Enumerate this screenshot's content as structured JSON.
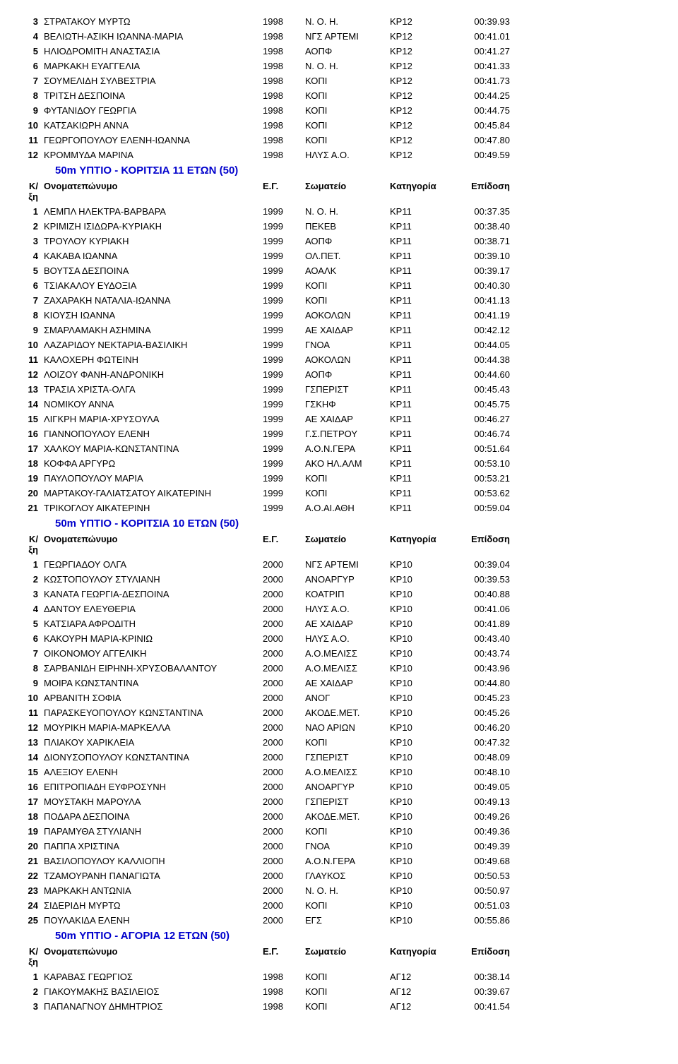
{
  "top_rows": [
    {
      "rank": "3",
      "name": "ΣΤΡΑΤΑΚΟΥ ΜΥΡΤΩ",
      "year": "1998",
      "club": "Ν. Ο. Η.",
      "cat": "ΚΡ12",
      "time": "00:39.93"
    },
    {
      "rank": "4",
      "name": "ΒΕΛΙΩΤΗ-ΑΣΙΚΗ ΙΩΑΝΝΑ-ΜΑΡΙΑ",
      "year": "1998",
      "club": "ΝΓΣ ΑΡΤΕΜΙ",
      "cat": "ΚΡ12",
      "time": "00:41.01"
    },
    {
      "rank": "5",
      "name": "ΗΛΙΟΔΡΟΜΙΤΗ ΑΝΑΣΤΑΣΙΑ",
      "year": "1998",
      "club": "ΑΟΠΦ",
      "cat": "ΚΡ12",
      "time": "00:41.27"
    },
    {
      "rank": "6",
      "name": "ΜΑΡΚΑΚΗ ΕΥΑΓΓΕΛΙΑ",
      "year": "1998",
      "club": "Ν. Ο. Η.",
      "cat": "ΚΡ12",
      "time": "00:41.33"
    },
    {
      "rank": "7",
      "name": "ΣΟΥΜΕΛΙΔΗ ΣΥΛΒΕΣΤΡΙΑ",
      "year": "1998",
      "club": "ΚΟΠΙ",
      "cat": "ΚΡ12",
      "time": "00:41.73"
    },
    {
      "rank": "8",
      "name": "ΤΡΙΤΣΗ ΔΕΣΠΟΙΝΑ",
      "year": "1998",
      "club": "ΚΟΠΙ",
      "cat": "ΚΡ12",
      "time": "00:44.25"
    },
    {
      "rank": "9",
      "name": "ΦΥΤΑΝΙΔΟΥ ΓΕΩΡΓΙΑ",
      "year": "1998",
      "club": "ΚΟΠΙ",
      "cat": "ΚΡ12",
      "time": "00:44.75"
    },
    {
      "rank": "10",
      "name": "ΚΑΤΣΑΚΙΩΡΗ ΑΝΝΑ",
      "year": "1998",
      "club": "ΚΟΠΙ",
      "cat": "ΚΡ12",
      "time": "00:45.84"
    },
    {
      "rank": "11",
      "name": "ΓΕΩΡΓΟΠΟΥΛΟΥ ΕΛΕΝΗ-ΙΩΑΝΝΑ",
      "year": "1998",
      "club": "ΚΟΠΙ",
      "cat": "ΚΡ12",
      "time": "00:47.80"
    },
    {
      "rank": "12",
      "name": "ΚΡΟΜΜΥΔΑ ΜΑΡΙΝΑ",
      "year": "1998",
      "club": "ΗΛΥΣ Α.Ο.",
      "cat": "ΚΡ12",
      "time": "00:49.59"
    }
  ],
  "section1_title": "50m ΥΠΤΙΟ - ΚΟΡΙΤΣΙΑ 11 ΕΤΩΝ  (50)",
  "header": {
    "rank": "Κ/ξη",
    "name": "Ονοματεπώνυμο",
    "year": "Ε.Γ.",
    "club": "Σωματείο",
    "cat": "Κατηγορία",
    "time": "Επίδοση"
  },
  "section1_rows": [
    {
      "rank": "1",
      "name": "ΛΕΜΠΛ ΗΛΕΚΤΡΑ-ΒΑΡΒΑΡΑ",
      "year": "1999",
      "club": "Ν. Ο. Η.",
      "cat": "ΚΡ11",
      "time": "00:37.35"
    },
    {
      "rank": "2",
      "name": "ΚΡΙΜΙΖΗ ΙΣΙΔΩΡΑ-ΚΥΡΙΑΚΗ",
      "year": "1999",
      "club": "ΠΕΚΕΒ",
      "cat": "ΚΡ11",
      "time": "00:38.40"
    },
    {
      "rank": "3",
      "name": "ΤΡΟΥΛΟΥ ΚΥΡΙΑΚΗ",
      "year": "1999",
      "club": "ΑΟΠΦ",
      "cat": "ΚΡ11",
      "time": "00:38.71"
    },
    {
      "rank": "4",
      "name": "ΚΑΚΑΒΑ ΙΩΑΝΝΑ",
      "year": "1999",
      "club": "ΟΛ.ΠΕΤ.",
      "cat": "ΚΡ11",
      "time": "00:39.10"
    },
    {
      "rank": "5",
      "name": "ΒΟΥΤΣΑ ΔΕΣΠΟΙΝΑ",
      "year": "1999",
      "club": "ΑΟΑΛΚ",
      "cat": "ΚΡ11",
      "time": "00:39.17"
    },
    {
      "rank": "6",
      "name": "ΤΣΙΑΚΑΛΟΥ ΕΥΔΟΞΙΑ",
      "year": "1999",
      "club": "ΚΟΠΙ",
      "cat": "ΚΡ11",
      "time": "00:40.30"
    },
    {
      "rank": "7",
      "name": "ΖΑΧΑΡΑΚΗ ΝΑΤΑΛΙΑ-ΙΩΑΝΝΑ",
      "year": "1999",
      "club": "ΚΟΠΙ",
      "cat": "ΚΡ11",
      "time": "00:41.13"
    },
    {
      "rank": "8",
      "name": "ΚΙΟΥΣΗ ΙΩΑΝΝΑ",
      "year": "1999",
      "club": "ΑΟΚΟΛΩΝ",
      "cat": "ΚΡ11",
      "time": "00:41.19"
    },
    {
      "rank": "9",
      "name": "ΣΜΑΡΛΑΜΑΚΗ ΑΣΗΜΙΝΑ",
      "year": "1999",
      "club": "ΑΕ ΧΑΙΔΑΡ",
      "cat": "ΚΡ11",
      "time": "00:42.12"
    },
    {
      "rank": "10",
      "name": "ΛΑΖΑΡΙΔΟΥ ΝΕΚΤΑΡΙΑ-ΒΑΣΙΛΙΚΗ",
      "year": "1999",
      "club": "ΓΝΟΑ",
      "cat": "ΚΡ11",
      "time": "00:44.05"
    },
    {
      "rank": "11",
      "name": "ΚΑΛΟΧΕΡΗ ΦΩΤΕΙΝΗ",
      "year": "1999",
      "club": "ΑΟΚΟΛΩΝ",
      "cat": "ΚΡ11",
      "time": "00:44.38"
    },
    {
      "rank": "12",
      "name": "ΛΟΙΖΟΥ ΦΑΝΗ-ΑΝΔΡΟΝΙΚΗ",
      "year": "1999",
      "club": "ΑΟΠΦ",
      "cat": "ΚΡ11",
      "time": "00:44.60"
    },
    {
      "rank": "13",
      "name": "ΤΡΑΣΙΑ ΧΡΙΣΤΑ-ΟΛΓΑ",
      "year": "1999",
      "club": "ΓΣΠΕΡΙΣΤ",
      "cat": "ΚΡ11",
      "time": "00:45.43"
    },
    {
      "rank": "14",
      "name": "ΝΟΜΙΚΟΥ ΑΝΝΑ",
      "year": "1999",
      "club": "ΓΣΚΗΦ",
      "cat": "ΚΡ11",
      "time": "00:45.75"
    },
    {
      "rank": "15",
      "name": "ΛΙΓΚΡΗ ΜΑΡΙΑ-ΧΡΥΣΟΥΛΑ",
      "year": "1999",
      "club": "ΑΕ ΧΑΙΔΑΡ",
      "cat": "ΚΡ11",
      "time": "00:46.27"
    },
    {
      "rank": "16",
      "name": "ΓΙΑΝΝΟΠΟΥΛΟΥ ΕΛΕΝΗ",
      "year": "1999",
      "club": "Γ.Σ.ΠΕΤΡΟΥ",
      "cat": "ΚΡ11",
      "time": "00:46.74"
    },
    {
      "rank": "17",
      "name": "ΧΑΛΚΟΥ ΜΑΡΙΑ-ΚΩΝΣΤΑΝΤΙΝΑ",
      "year": "1999",
      "club": "Α.Ο.Ν.ΓΕΡΑ",
      "cat": "ΚΡ11",
      "time": "00:51.64"
    },
    {
      "rank": "18",
      "name": "ΚΟΦΦΑ ΑΡΓΥΡΩ",
      "year": "1999",
      "club": "ΑΚΟ ΗΛ.ΑΛΜ",
      "cat": "ΚΡ11",
      "time": "00:53.10"
    },
    {
      "rank": "19",
      "name": "ΠΑΥΛΟΠΟΥΛΟΥ ΜΑΡΙΑ",
      "year": "1999",
      "club": "ΚΟΠΙ",
      "cat": "ΚΡ11",
      "time": "00:53.21"
    },
    {
      "rank": "20",
      "name": "ΜΑΡΤΑΚΟΥ-ΓΑΛΙΑΤΣΑΤΟΥ ΑΙΚΑΤΕΡΙΝΗ",
      "year": "1999",
      "club": "ΚΟΠΙ",
      "cat": "ΚΡ11",
      "time": "00:53.62"
    },
    {
      "rank": "21",
      "name": "ΤΡΙΚΟΓΛΟΥ ΑΙΚΑΤΕΡΙΝΗ",
      "year": "1999",
      "club": "Α.Ο.ΑΙ.ΑΘΗ",
      "cat": "ΚΡ11",
      "time": "00:59.04"
    }
  ],
  "section2_title": "50m ΥΠΤΙΟ - ΚΟΡΙΤΣΙΑ 10 ΕΤΩΝ  (50)",
  "section2_rows": [
    {
      "rank": "1",
      "name": "ΓΕΩΡΓΙΑΔΟΥ ΟΛΓΑ",
      "year": "2000",
      "club": "ΝΓΣ ΑΡΤΕΜΙ",
      "cat": "ΚΡ10",
      "time": "00:39.04"
    },
    {
      "rank": "2",
      "name": "ΚΩΣΤΟΠΟΥΛΟΥ ΣΤΥΛΙΑΝΗ",
      "year": "2000",
      "club": "ΑΝΟΑΡΓΥΡ",
      "cat": "ΚΡ10",
      "time": "00:39.53"
    },
    {
      "rank": "3",
      "name": "ΚΑΝΑΤΑ ΓΕΩΡΓΙΑ-ΔΕΣΠΟΙΝΑ",
      "year": "2000",
      "club": "ΚΟΑΤΡΙΠ",
      "cat": "ΚΡ10",
      "time": "00:40.88"
    },
    {
      "rank": "4",
      "name": "ΔΑΝΤΟΥ ΕΛΕΥΘΕΡΙΑ",
      "year": "2000",
      "club": "ΗΛΥΣ Α.Ο.",
      "cat": "ΚΡ10",
      "time": "00:41.06"
    },
    {
      "rank": "5",
      "name": "ΚΑΤΣΙΑΡΑ ΑΦΡΟΔΙΤΗ",
      "year": "2000",
      "club": "ΑΕ ΧΑΙΔΑΡ",
      "cat": "ΚΡ10",
      "time": "00:41.89"
    },
    {
      "rank": "6",
      "name": "ΚΑΚΟΥΡΗ ΜΑΡΙΑ-ΚΡΙΝΙΩ",
      "year": "2000",
      "club": "ΗΛΥΣ Α.Ο.",
      "cat": "ΚΡ10",
      "time": "00:43.40"
    },
    {
      "rank": "7",
      "name": "ΟΙΚΟΝΟΜΟΥ ΑΓΓΕΛΙΚΗ",
      "year": "2000",
      "club": "Α.Ο.ΜΕΛΙΣΣ",
      "cat": "ΚΡ10",
      "time": "00:43.74"
    },
    {
      "rank": "8",
      "name": "ΣΑΡΒΑΝΙΔΗ ΕΙΡΗΝΗ-ΧΡΥΣΟΒΑΛΑΝΤΟΥ",
      "year": "2000",
      "club": "Α.Ο.ΜΕΛΙΣΣ",
      "cat": "ΚΡ10",
      "time": "00:43.96"
    },
    {
      "rank": "9",
      "name": "ΜΟΙΡΑ ΚΩΝΣΤΑΝΤΙΝΑ",
      "year": "2000",
      "club": "ΑΕ ΧΑΙΔΑΡ",
      "cat": "ΚΡ10",
      "time": "00:44.80"
    },
    {
      "rank": "10",
      "name": "ΑΡΒΑΝΙΤΗ ΣΟΦΙΑ",
      "year": "2000",
      "club": "ΑΝΟΓ",
      "cat": "ΚΡ10",
      "time": "00:45.23"
    },
    {
      "rank": "11",
      "name": "ΠΑΡΑΣΚΕΥΟΠΟΥΛΟΥ ΚΩΝΣΤΑΝΤΙΝΑ",
      "year": "2000",
      "club": "ΑΚΟΔΕ.ΜΕΤ.",
      "cat": "ΚΡ10",
      "time": "00:45.26"
    },
    {
      "rank": "12",
      "name": "ΜΟΥΡΙΚΗ ΜΑΡΙΑ-ΜΑΡΚΕΛΛΑ",
      "year": "2000",
      "club": "ΝΑΟ ΑΡΙΩΝ",
      "cat": "ΚΡ10",
      "time": "00:46.20"
    },
    {
      "rank": "13",
      "name": "ΠΛΙΑΚΟΥ ΧΑΡΙΚΛΕΙΑ",
      "year": "2000",
      "club": "ΚΟΠΙ",
      "cat": "ΚΡ10",
      "time": "00:47.32"
    },
    {
      "rank": "14",
      "name": "ΔΙΟΝΥΣΟΠΟΥΛΟΥ ΚΩΝΣΤΑΝΤΙΝΑ",
      "year": "2000",
      "club": "ΓΣΠΕΡΙΣΤ",
      "cat": "ΚΡ10",
      "time": "00:48.09"
    },
    {
      "rank": "15",
      "name": "ΑΛΕΞΙΟΥ ΕΛΕΝΗ",
      "year": "2000",
      "club": "Α.Ο.ΜΕΛΙΣΣ",
      "cat": "ΚΡ10",
      "time": "00:48.10"
    },
    {
      "rank": "16",
      "name": "ΕΠΙΤΡΟΠΙΑΔΗ ΕΥΦΡΟΣΥΝΗ",
      "year": "2000",
      "club": "ΑΝΟΑΡΓΥΡ",
      "cat": "ΚΡ10",
      "time": "00:49.05"
    },
    {
      "rank": "17",
      "name": "ΜΟΥΣΤΑΚΗ ΜΑΡΟΥΛΑ",
      "year": "2000",
      "club": "ΓΣΠΕΡΙΣΤ",
      "cat": "ΚΡ10",
      "time": "00:49.13"
    },
    {
      "rank": "18",
      "name": "ΠΟΔΑΡΑ ΔΕΣΠΟΙΝΑ",
      "year": "2000",
      "club": "ΑΚΟΔΕ.ΜΕΤ.",
      "cat": "ΚΡ10",
      "time": "00:49.26"
    },
    {
      "rank": "19",
      "name": "ΠΑΡΑΜΥΘΑ ΣΤΥΛΙΑΝΗ",
      "year": "2000",
      "club": "ΚΟΠΙ",
      "cat": "ΚΡ10",
      "time": "00:49.36"
    },
    {
      "rank": "20",
      "name": "ΠΑΠΠΑ ΧΡΙΣΤΙΝΑ",
      "year": "2000",
      "club": "ΓΝΟΑ",
      "cat": "ΚΡ10",
      "time": "00:49.39"
    },
    {
      "rank": "21",
      "name": "ΒΑΣΙΛΟΠΟΥΛΟΥ ΚΑΛΛΙΟΠΗ",
      "year": "2000",
      "club": "Α.Ο.Ν.ΓΕΡΑ",
      "cat": "ΚΡ10",
      "time": "00:49.68"
    },
    {
      "rank": "22",
      "name": "ΤΖΑΜΟΥΡΑΝΗ ΠΑΝΑΓΙΩΤΑ",
      "year": "2000",
      "club": "ΓΛΑΥΚΟΣ",
      "cat": "ΚΡ10",
      "time": "00:50.53"
    },
    {
      "rank": "23",
      "name": "ΜΑΡΚΑΚΗ ΑΝΤΩΝΙΑ",
      "year": "2000",
      "club": "Ν. Ο. Η.",
      "cat": "ΚΡ10",
      "time": "00:50.97"
    },
    {
      "rank": "24",
      "name": "ΣΙΔΕΡΙΔΗ ΜΥΡΤΩ",
      "year": "2000",
      "club": "ΚΟΠΙ",
      "cat": "ΚΡ10",
      "time": "00:51.03"
    },
    {
      "rank": "25",
      "name": "ΠΟΥΛΑΚΙΔΑ ΕΛΕΝΗ",
      "year": "2000",
      "club": "ΕΓΣ",
      "cat": "ΚΡ10",
      "time": "00:55.86"
    }
  ],
  "section3_title": "50m ΥΠΤΙΟ - ΑΓΟΡΙΑ 12 ΕΤΩΝ  (50)",
  "section3_rows": [
    {
      "rank": "1",
      "name": "ΚΑΡΑΒΑΣ ΓΕΩΡΓΙΟΣ",
      "year": "1998",
      "club": "ΚΟΠΙ",
      "cat": "ΑΓ12",
      "time": "00:38.14"
    },
    {
      "rank": "2",
      "name": "ΓΙΑΚΟΥΜΑΚΗΣ ΒΑΣΙΛΕΙΟΣ",
      "year": "1998",
      "club": "ΚΟΠΙ",
      "cat": "ΑΓ12",
      "time": "00:39.67"
    },
    {
      "rank": "3",
      "name": "ΠΑΠΑΝΑΓΝΟΥ ΔΗΜΗΤΡΙΟΣ",
      "year": "1998",
      "club": "ΚΟΠΙ",
      "cat": "ΑΓ12",
      "time": "00:41.54"
    }
  ]
}
